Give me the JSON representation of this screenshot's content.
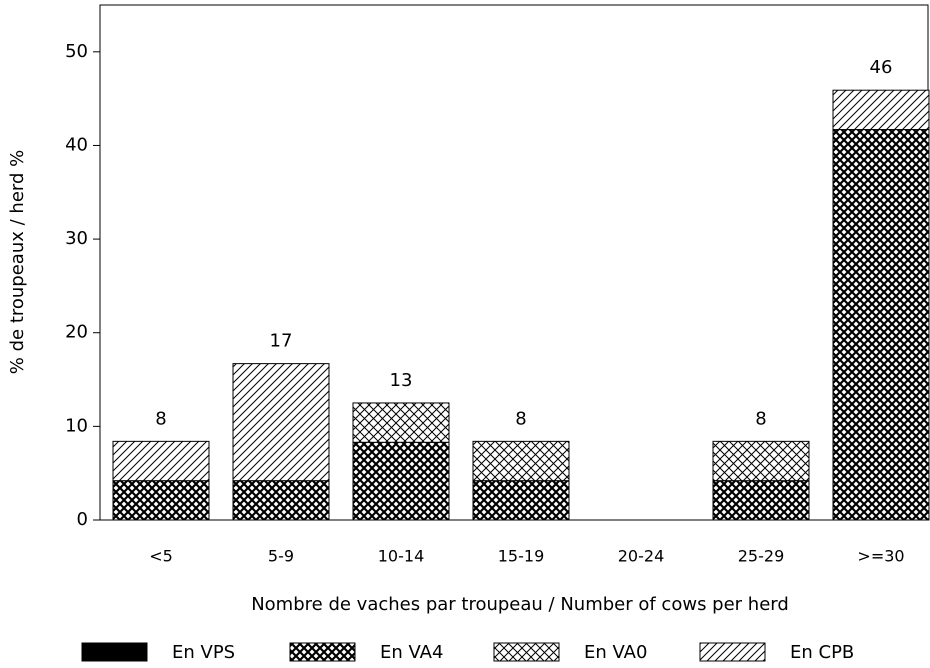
{
  "chart_data": {
    "type": "stacked_bar",
    "xlabel": "Nombre de vaches par troupeau / Number of cows per herd",
    "ylabel": "% de troupeaux / herd %",
    "categories": [
      "<5",
      "5-9",
      "10-14",
      "15-19",
      "20-24",
      "25-29",
      ">=30"
    ],
    "series": [
      {
        "name": "En VPS",
        "color": "#000000",
        "pattern": "solid",
        "values": [
          0,
          0,
          0,
          0,
          0,
          0,
          0
        ]
      },
      {
        "name": "En VA4",
        "color": "#000000",
        "pattern": "dense-crosshatch",
        "values": [
          4.2,
          4.2,
          8.3,
          4.2,
          0,
          4.2,
          41.7
        ]
      },
      {
        "name": "En VA0",
        "color": "#000000",
        "pattern": "crosshatch",
        "values": [
          0,
          0,
          4.2,
          4.2,
          0,
          4.2,
          0
        ]
      },
      {
        "name": "En CPB",
        "color": "#000000",
        "pattern": "diagonal",
        "values": [
          4.2,
          12.5,
          0,
          0,
          0,
          0,
          4.2
        ]
      }
    ],
    "total_labels": [
      8,
      17,
      13,
      8,
      null,
      8,
      46
    ],
    "ylim": [
      0,
      55
    ],
    "yticks": [
      0,
      10,
      20,
      30,
      40,
      50
    ],
    "legend": "bottom"
  }
}
